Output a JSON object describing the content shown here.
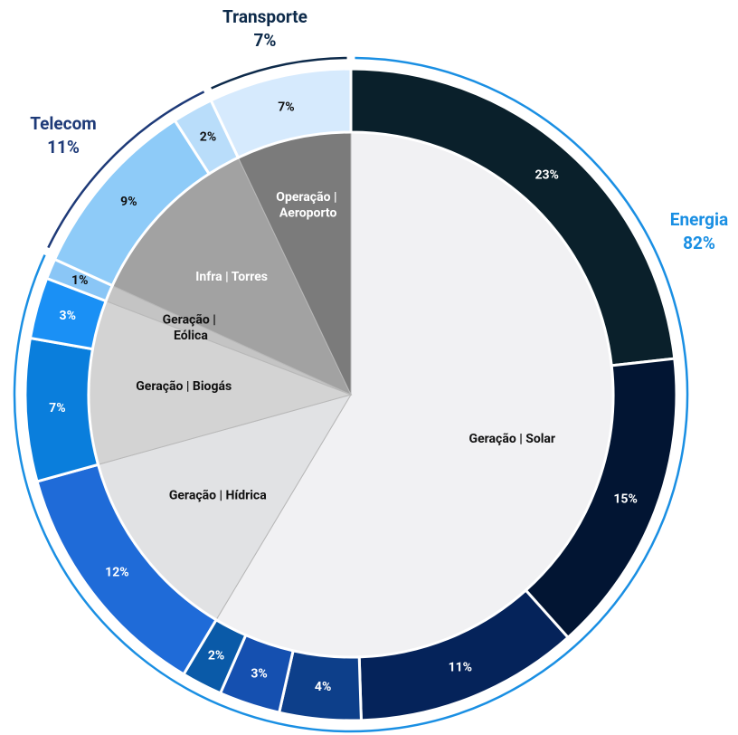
{
  "chart_data": {
    "type": "sunburst",
    "groups": [
      {
        "name": "Energia",
        "value": 82,
        "value_label": "82%",
        "color": "#1a8fe3"
      },
      {
        "name": "Telecom",
        "value": 11,
        "value_label": "11%",
        "color": "#1e3a78"
      },
      {
        "name": "Transporte",
        "value": 7,
        "value_label": "7%",
        "color": "#0d2a4a"
      }
    ],
    "inner": {
      "categories": [
        "Geração | Solar",
        "Geração | Hídrica",
        "Geração | Biogás",
        "Geração | Eólica",
        "Infra | Torres",
        "Operação | Aeroporto"
      ],
      "values": [
        58,
        12,
        10,
        1,
        11,
        7
      ],
      "colors": [
        "#f1f1f3",
        "#e1e2e4",
        "#d3d3d3",
        "#c4c4c4",
        "#a2a2a2",
        "#7b7b7b"
      ]
    },
    "outer": {
      "values": [
        23,
        15,
        11,
        4,
        3,
        2,
        12,
        7,
        3,
        1,
        9,
        2,
        7
      ],
      "value_labels": [
        "23%",
        "15%",
        "11%",
        "4%",
        "3%",
        "2%",
        "12%",
        "7%",
        "3%",
        "1%",
        "9%",
        "2%",
        "7%"
      ],
      "colors": [
        "#0a202b",
        "#021533",
        "#05235a",
        "#0d3f8a",
        "#1550b0",
        "#0a5aa8",
        "#1f6bd8",
        "#0a7edc",
        "#1a90f5",
        "#8ac6f6",
        "#8ecbf8",
        "#b9ddfa",
        "#d6eafd"
      ]
    }
  }
}
